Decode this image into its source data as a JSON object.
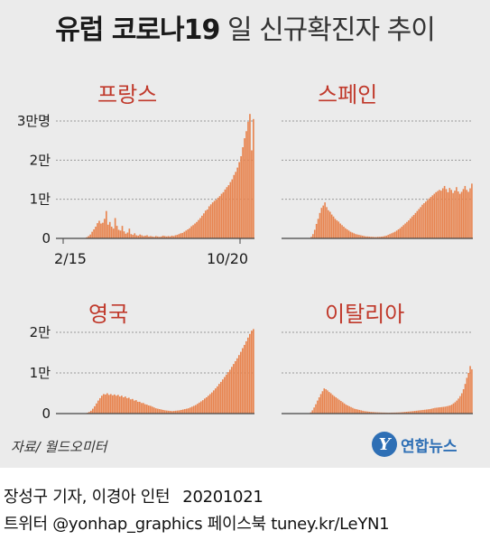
{
  "title_bold": "유럽 코로나19",
  "title_light": "일 신규확진자 추이",
  "source": "자료/ 월드오미터",
  "logo": {
    "mark": "Y",
    "text": "연합뉴스"
  },
  "credit": {
    "line1": "장성구 기자, 이경아 인턴",
    "date": "20201021",
    "line2": "트위터 @yonhap_graphics  페이스북 tuney.kr/LeYN1"
  },
  "colors": {
    "bar": "#e8844f",
    "panel_title": "#c0392b",
    "background": "#ebebeb"
  },
  "chart_data": [
    {
      "type": "bar",
      "title": "프랑스",
      "x_labels": [
        "2/15",
        "10/20"
      ],
      "ylim": [
        0,
        30000
      ],
      "yticks": [
        {
          "value": 0,
          "label": "0"
        },
        {
          "value": 10000,
          "label": "1만"
        },
        {
          "value": 20000,
          "label": "2만"
        },
        {
          "value": 30000,
          "label": "3만명"
        }
      ],
      "values": [
        0,
        0,
        0,
        0,
        0,
        0,
        0,
        0,
        0,
        0,
        0,
        0,
        0,
        0,
        0,
        0,
        100,
        300,
        600,
        1000,
        1700,
        2300,
        3000,
        3900,
        4500,
        3800,
        4000,
        5000,
        7000,
        3500,
        4200,
        3000,
        2500,
        5200,
        3200,
        2200,
        2000,
        3200,
        1800,
        1200,
        1500,
        2500,
        1100,
        900,
        1300,
        800,
        700,
        1000,
        800,
        600,
        700,
        800,
        500,
        600,
        500,
        400,
        600,
        500,
        400,
        500,
        700,
        600,
        500,
        600,
        500,
        700,
        600,
        800,
        900,
        1100,
        1300,
        1400,
        1700,
        2000,
        2300,
        2600,
        3100,
        3400,
        3800,
        4200,
        4700,
        5200,
        5800,
        6400,
        7100,
        7400,
        8200,
        8700,
        9200,
        9600,
        9900,
        10400,
        10800,
        11400,
        11800,
        12500,
        13100,
        13600,
        14400,
        15100,
        16200,
        17000,
        18100,
        19500,
        21000,
        23300,
        25600,
        27400,
        29800,
        31800,
        22500,
        30500
      ]
    },
    {
      "type": "bar",
      "title": "스페인",
      "ylim": [
        0,
        30000
      ],
      "values": [
        0,
        0,
        0,
        0,
        0,
        0,
        0,
        0,
        0,
        0,
        0,
        0,
        0,
        0,
        0,
        0,
        100,
        400,
        1100,
        2200,
        3700,
        5000,
        6500,
        7800,
        8400,
        9200,
        8000,
        7200,
        6800,
        6100,
        5600,
        5000,
        4600,
        4300,
        3800,
        3400,
        3000,
        2600,
        2300,
        2000,
        1700,
        1500,
        1300,
        1100,
        1000,
        900,
        800,
        700,
        600,
        500,
        500,
        450,
        400,
        400,
        350,
        350,
        400,
        400,
        450,
        500,
        600,
        700,
        900,
        1100,
        1300,
        1500,
        1700,
        2000,
        2300,
        2600,
        3000,
        3400,
        3800,
        4200,
        4600,
        5100,
        5600,
        6000,
        6500,
        7000,
        7500,
        8000,
        8600,
        9000,
        9400,
        9800,
        10200,
        10600,
        11000,
        11400,
        11800,
        12100,
        12400,
        12200,
        12800,
        13400,
        12600,
        11800,
        12900,
        12400,
        11600,
        12200,
        13100,
        12000,
        11400,
        11900,
        12600,
        13400,
        12400,
        11900,
        12800,
        14000
      ]
    },
    {
      "type": "bar",
      "title": "영국",
      "ylim": [
        0,
        20000
      ],
      "yticks": [
        {
          "value": 0,
          "label": "0"
        },
        {
          "value": 10000,
          "label": "1만"
        },
        {
          "value": 20000,
          "label": "2만"
        }
      ],
      "values": [
        0,
        0,
        0,
        0,
        0,
        0,
        0,
        0,
        0,
        0,
        0,
        0,
        0,
        0,
        0,
        0,
        100,
        200,
        400,
        700,
        1200,
        1800,
        2500,
        3200,
        3800,
        4400,
        4800,
        4700,
        5000,
        4600,
        4800,
        4500,
        4700,
        4400,
        4600,
        4200,
        4400,
        4000,
        4200,
        3800,
        3900,
        3500,
        3600,
        3200,
        3300,
        2900,
        2900,
        2600,
        2600,
        2300,
        2200,
        2000,
        1900,
        1700,
        1500,
        1300,
        1200,
        1100,
        1000,
        900,
        800,
        750,
        700,
        650,
        600,
        650,
        700,
        750,
        800,
        900,
        1000,
        1100,
        1200,
        1300,
        1500,
        1700,
        1900,
        2100,
        2400,
        2700,
        3000,
        3300,
        3700,
        4000,
        4400,
        4800,
        5200,
        5700,
        6200,
        6700,
        7300,
        7800,
        8400,
        9000,
        9600,
        10200,
        10800,
        11500,
        12200,
        12900,
        13600,
        14400,
        15200,
        16100,
        16900,
        17800,
        18700,
        19600,
        20400,
        20800
      ]
    },
    {
      "type": "bar",
      "title": "이탈리아",
      "ylim": [
        0,
        20000
      ],
      "values": [
        0,
        0,
        0,
        0,
        0,
        0,
        0,
        0,
        0,
        0,
        0,
        0,
        0,
        0,
        0,
        0,
        100,
        300,
        800,
        1500,
        2300,
        3200,
        4000,
        4800,
        5500,
        6200,
        6000,
        5700,
        5300,
        5000,
        4600,
        4300,
        4000,
        3700,
        3400,
        3100,
        2800,
        2500,
        2200,
        2000,
        1800,
        1600,
        1400,
        1200,
        1100,
        1000,
        900,
        800,
        700,
        600,
        550,
        500,
        450,
        400,
        380,
        350,
        320,
        300,
        280,
        260,
        250,
        240,
        230,
        220,
        220,
        230,
        240,
        250,
        260,
        280,
        300,
        330,
        360,
        400,
        440,
        480,
        520,
        560,
        600,
        650,
        700,
        750,
        800,
        850,
        900,
        950,
        1000,
        1050,
        1100,
        1200,
        1300,
        1400,
        1450,
        1500,
        1550,
        1600,
        1650,
        1700,
        1800,
        1900,
        2000,
        2200,
        2500,
        2800,
        3200,
        3700,
        4300,
        5000,
        6000,
        7300,
        8800,
        10000,
        11700,
        10900
      ]
    }
  ]
}
